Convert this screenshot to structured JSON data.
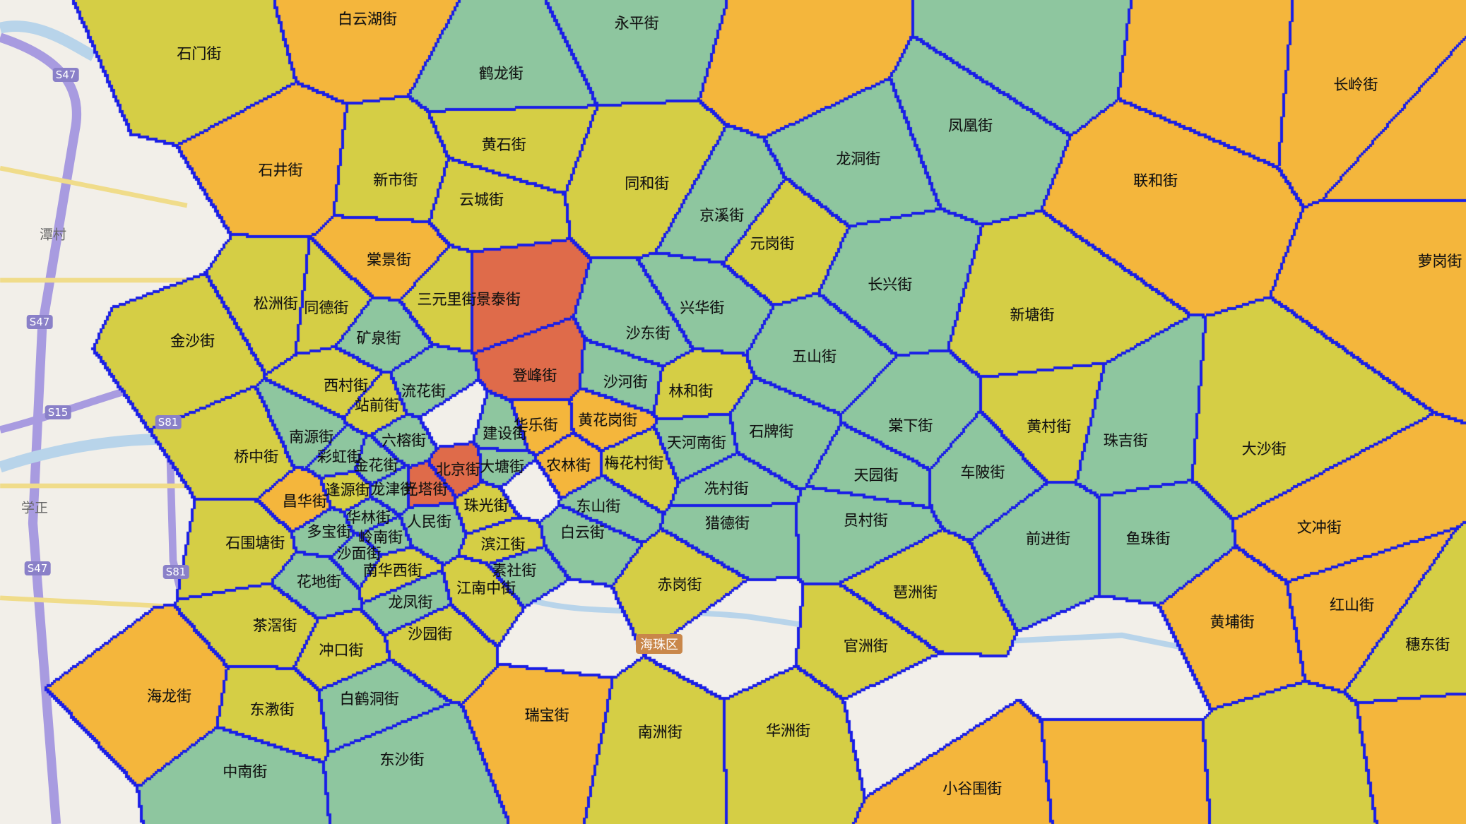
{
  "palette": {
    "G": "#8ec69f",
    "Y": "#d5ce45",
    "O": "#f4b63c",
    "R": "#df6b4a"
  },
  "border_color": "#1a1ee6",
  "districts": [
    {
      "name": "石门街",
      "c": "Y"
    },
    {
      "name": "白云湖街",
      "c": "O"
    },
    {
      "name": "永平街",
      "c": "G"
    },
    {
      "name": "鹤龙街",
      "c": "G"
    },
    {
      "name": "长岭街",
      "c": "O"
    },
    {
      "name": "凤凰街",
      "c": "G"
    },
    {
      "name": "黄石街",
      "c": "Y"
    },
    {
      "name": "龙洞街",
      "c": "G"
    },
    {
      "name": "石井街",
      "c": "O"
    },
    {
      "name": "新市街",
      "c": "Y"
    },
    {
      "name": "同和街",
      "c": "Y"
    },
    {
      "name": "联和街",
      "c": "O"
    },
    {
      "name": "云城街",
      "c": "Y"
    },
    {
      "name": "京溪街",
      "c": "G"
    },
    {
      "name": "元岗街",
      "c": "Y"
    },
    {
      "name": "棠景街",
      "c": "O"
    },
    {
      "name": "萝岗街",
      "c": "O"
    },
    {
      "name": "长兴街",
      "c": "G"
    },
    {
      "name": "松洲街",
      "c": "Y"
    },
    {
      "name": "同德街",
      "c": "Y"
    },
    {
      "name": "三元里街",
      "c": "Y"
    },
    {
      "name": "景泰街",
      "c": "R"
    },
    {
      "name": "新塘街",
      "c": "Y"
    },
    {
      "name": "兴华街",
      "c": "G"
    },
    {
      "name": "金沙街",
      "c": "Y"
    },
    {
      "name": "矿泉街",
      "c": "G"
    },
    {
      "name": "沙东街",
      "c": "G"
    },
    {
      "name": "五山街",
      "c": "G"
    },
    {
      "name": "登峰街",
      "c": "R"
    },
    {
      "name": "沙河街",
      "c": "G"
    },
    {
      "name": "西村街",
      "c": "Y"
    },
    {
      "name": "流花街",
      "c": "G"
    },
    {
      "name": "林和街",
      "c": "Y"
    },
    {
      "name": "站前街",
      "c": "Y"
    },
    {
      "name": "华乐街",
      "c": "O"
    },
    {
      "name": "黄花岗街",
      "c": "O"
    },
    {
      "name": "棠下街",
      "c": "G"
    },
    {
      "name": "黄村街",
      "c": "Y"
    },
    {
      "name": "珠吉街",
      "c": "G"
    },
    {
      "name": "大沙街",
      "c": "Y"
    },
    {
      "name": "天河南街",
      "c": "G"
    },
    {
      "name": "石牌街",
      "c": "G"
    },
    {
      "name": "建设街",
      "c": "G"
    },
    {
      "name": "南源街",
      "c": "G"
    },
    {
      "name": "六榕街",
      "c": "G"
    },
    {
      "name": "桥中街",
      "c": "Y"
    },
    {
      "name": "彩虹街",
      "c": "G"
    },
    {
      "name": "金花街",
      "c": "G"
    },
    {
      "name": "北京街",
      "c": "R"
    },
    {
      "name": "大塘街",
      "c": "G"
    },
    {
      "name": "农林街",
      "c": "O"
    },
    {
      "name": "梅花村街",
      "c": "Y"
    },
    {
      "name": "车陂街",
      "c": "G"
    },
    {
      "name": "天园街",
      "c": "G"
    },
    {
      "name": "冼村街",
      "c": "G"
    },
    {
      "name": "逢源街",
      "c": "Y"
    },
    {
      "name": "龙津街",
      "c": "G"
    },
    {
      "name": "光塔街",
      "c": "R"
    },
    {
      "name": "昌华街",
      "c": "O"
    },
    {
      "name": "珠光街",
      "c": "Y"
    },
    {
      "name": "东山街",
      "c": "G"
    },
    {
      "name": "员村街",
      "c": "G"
    },
    {
      "name": "猎德街",
      "c": "G"
    },
    {
      "name": "华林街",
      "c": "G"
    },
    {
      "name": "人民街",
      "c": "G"
    },
    {
      "name": "文冲街",
      "c": "O"
    },
    {
      "name": "多宝街",
      "c": "G"
    },
    {
      "name": "岭南街",
      "c": "G"
    },
    {
      "name": "白云街",
      "c": "G"
    },
    {
      "name": "前进街",
      "c": "G"
    },
    {
      "name": "鱼珠街",
      "c": "G"
    },
    {
      "name": "石围塘街",
      "c": "Y"
    },
    {
      "name": "滨江街",
      "c": "Y"
    },
    {
      "name": "沙面街",
      "c": "G"
    },
    {
      "name": "南华西街",
      "c": "Y"
    },
    {
      "name": "素社街",
      "c": "G"
    },
    {
      "name": "花地街",
      "c": "G"
    },
    {
      "name": "赤岗街",
      "c": "Y"
    },
    {
      "name": "琶洲街",
      "c": "Y"
    },
    {
      "name": "江南中街",
      "c": "Y"
    },
    {
      "name": "龙凤街",
      "c": "G"
    },
    {
      "name": "红山街",
      "c": "O"
    },
    {
      "name": "黄埔街",
      "c": "O"
    },
    {
      "name": "茶滘街",
      "c": "Y"
    },
    {
      "name": "沙园街",
      "c": "Y"
    },
    {
      "name": "穗东街",
      "c": "Y"
    },
    {
      "name": "官洲街",
      "c": "Y"
    },
    {
      "name": "冲口街",
      "c": "Y"
    },
    {
      "name": "海龙街",
      "c": "O"
    },
    {
      "name": "白鹤洞街",
      "c": "G"
    },
    {
      "name": "东漖街",
      "c": "Y"
    },
    {
      "name": "瑞宝街",
      "c": "O"
    },
    {
      "name": "南洲街",
      "c": "Y"
    },
    {
      "name": "华洲街",
      "c": "Y"
    },
    {
      "name": "东沙街",
      "c": "G"
    },
    {
      "name": "中南街",
      "c": "G"
    },
    {
      "name": "小谷围街",
      "c": "O"
    }
  ],
  "basemap": {
    "places": [
      "潭村",
      "学正"
    ],
    "district_label": "海珠区",
    "road_shields": [
      "S47",
      "S47",
      "S15",
      "S81",
      "S47",
      "S81"
    ]
  }
}
